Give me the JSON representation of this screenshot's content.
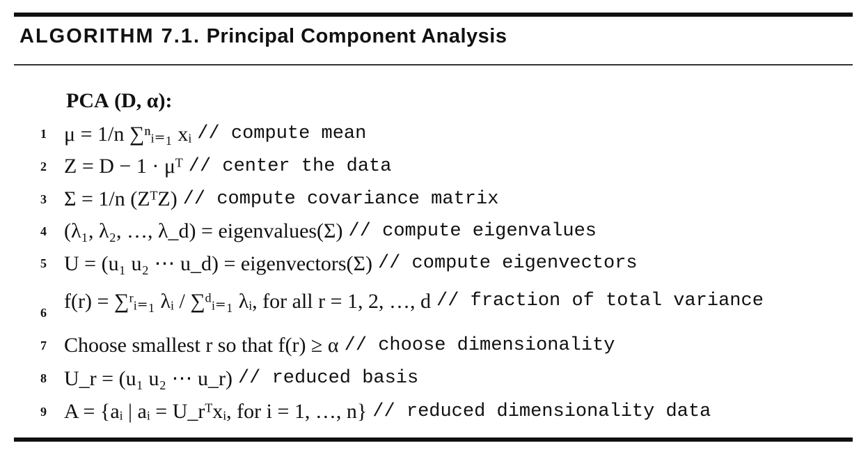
{
  "algorithm": {
    "label": "ALGORITHM 7.1.",
    "name": "Principal Component Analysis"
  },
  "header": {
    "func": "PCA",
    "args": "(D, α):"
  },
  "lines": [
    {
      "num": "1",
      "math": "μ = 1/n ∑ⁿᵢ₌₁ xᵢ",
      "comment": "// compute mean"
    },
    {
      "num": "2",
      "math": "Z = D − 1 · μᵀ",
      "comment": "// center the data"
    },
    {
      "num": "3",
      "math": "Σ = 1/n (ZᵀZ)",
      "comment": "// compute covariance matrix"
    },
    {
      "num": "4",
      "math": "(λ₁, λ₂, …, λ_d) = eigenvalues(Σ)",
      "comment": "// compute eigenvalues"
    },
    {
      "num": "5",
      "math": "U = (u₁   u₂   ⋯   u_d) = eigenvectors(Σ)",
      "comment": "// compute eigenvectors"
    },
    {
      "num": "6",
      "math": "f(r) = ∑ʳᵢ₌₁ λᵢ / ∑ᵈᵢ₌₁ λᵢ,  for all r = 1, 2, …, d",
      "comment": "// fraction of total variance"
    },
    {
      "num": "7",
      "math": "Choose smallest r so that f(r) ≥ α",
      "comment": "// choose dimensionality"
    },
    {
      "num": "8",
      "math": "U_r = (u₁   u₂   ⋯   u_r)",
      "comment": "// reduced basis"
    },
    {
      "num": "9",
      "math": "A = {aᵢ | aᵢ = U_rᵀxᵢ, for i = 1, …, n}",
      "comment": "// reduced dimensionality data"
    }
  ]
}
